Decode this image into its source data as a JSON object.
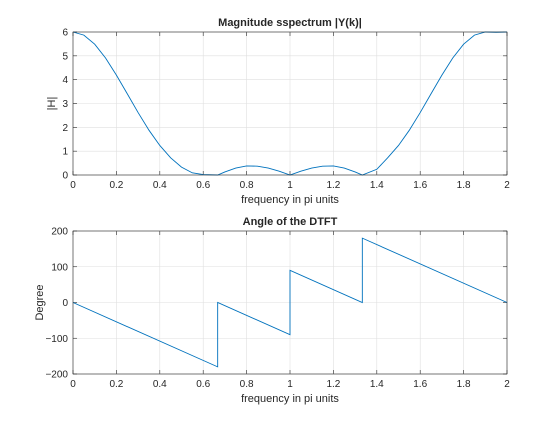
{
  "chart_data": [
    {
      "type": "line",
      "title": "Magnitude sspectrum |Y(k)|",
      "xlabel": "frequency in pi units",
      "ylabel": "|H|",
      "xlim": [
        0,
        2
      ],
      "ylim": [
        0,
        6
      ],
      "xticks": [
        "0",
        "0.2",
        "0.4",
        "0.6",
        "0.8",
        "1",
        "1.2",
        "1.4",
        "1.6",
        "1.8",
        "2"
      ],
      "yticks": [
        "0",
        "1",
        "2",
        "3",
        "4",
        "5",
        "6"
      ],
      "grid": true,
      "series": [
        {
          "color": "#0072BD",
          "x": [
            0,
            0.05,
            0.1,
            0.15,
            0.2,
            0.25,
            0.3,
            0.35,
            0.4,
            0.45,
            0.5,
            0.55,
            0.6,
            0.6667,
            0.7,
            0.75,
            0.8,
            0.85,
            0.9,
            0.95,
            1.0,
            1.05,
            1.1,
            1.15,
            1.2,
            1.25,
            1.3,
            1.3333,
            1.4,
            1.45,
            1.5,
            1.55,
            1.6,
            1.65,
            1.7,
            1.75,
            1.8,
            1.85,
            1.9,
            1.95,
            2.0
          ],
          "y": [
            6.0,
            5.87,
            5.49,
            4.91,
            4.19,
            3.41,
            2.62,
            1.88,
            1.24,
            0.72,
            0.33,
            0.09,
            0.02,
            0.0,
            0.13,
            0.29,
            0.38,
            0.37,
            0.29,
            0.16,
            0.0,
            0.16,
            0.29,
            0.37,
            0.38,
            0.29,
            0.13,
            0.0,
            0.24,
            0.72,
            1.24,
            1.88,
            2.62,
            3.41,
            4.19,
            4.91,
            5.49,
            5.87,
            6.0,
            5.99,
            6.0
          ]
        }
      ]
    },
    {
      "type": "line",
      "title": "Angle of the DTFT",
      "xlabel": "frequency in pi units",
      "ylabel": "Degree",
      "xlim": [
        0,
        2
      ],
      "ylim": [
        -200,
        200
      ],
      "xticks": [
        "0",
        "0.2",
        "0.4",
        "0.6",
        "0.8",
        "1",
        "1.2",
        "1.4",
        "1.6",
        "1.8",
        "2"
      ],
      "yticks": [
        "-200",
        "-100",
        "0",
        "100",
        "200"
      ],
      "grid": true,
      "series": [
        {
          "color": "#0072BD",
          "x": [
            0,
            0.6667,
            0.6667,
            1.0,
            1.0,
            1.3333,
            1.3333,
            2.0
          ],
          "y": [
            0,
            -180,
            0,
            -90,
            90,
            0,
            180,
            0
          ]
        }
      ]
    }
  ]
}
